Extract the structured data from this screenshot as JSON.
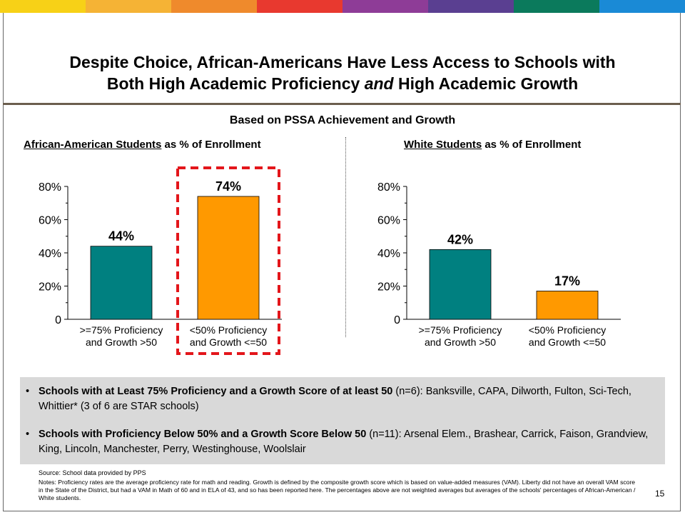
{
  "slide": {
    "stripe_colors": [
      "#f7d117",
      "#f5b335",
      "#ef8a2c",
      "#e8392f",
      "#8e3c97",
      "#5a3f91",
      "#0b7a5c",
      "#1a8ad6"
    ],
    "title_line1": "Despite Choice, African-Americans Have Less Access to Schools with",
    "title_line2_a": "Both High Academic Proficiency ",
    "title_line2_em": "and",
    "title_line2_b": " High Academic Growth",
    "subtitle": "Based on PSSA Achievement and Growth",
    "page_number": "15"
  },
  "chart_data": [
    {
      "type": "bar",
      "title_underlined": "African-American Students",
      "title_rest": " as % of Enrollment",
      "categories": [
        ">=75% Proficiency and Growth >50",
        "<50% Proficiency and Growth <=50"
      ],
      "category_lines": [
        [
          ">=75% Proficiency",
          "and Growth >50"
        ],
        [
          "<50% Proficiency",
          "and Growth <=50"
        ]
      ],
      "values": [
        44,
        74
      ],
      "value_labels": [
        "44%",
        "74%"
      ],
      "colors": [
        "#008080",
        "#ff9900"
      ],
      "ylim": [
        0,
        80
      ],
      "yticks": [
        0,
        20,
        40,
        60,
        80
      ],
      "ytick_labels": [
        "0",
        "20%",
        "40%",
        "60%",
        "80%"
      ],
      "highlight_index": 1,
      "highlight_color": "#e3161b"
    },
    {
      "type": "bar",
      "title_underlined": "White Students",
      "title_rest": " as % of Enrollment",
      "categories": [
        ">=75% Proficiency and Growth >50",
        "<50% Proficiency and Growth <=50"
      ],
      "category_lines": [
        [
          ">=75% Proficiency",
          "and Growth >50"
        ],
        [
          "<50% Proficiency",
          "and Growth <=50"
        ]
      ],
      "values": [
        42,
        17
      ],
      "value_labels": [
        "42%",
        "17%"
      ],
      "colors": [
        "#008080",
        "#ff9900"
      ],
      "ylim": [
        0,
        80
      ],
      "yticks": [
        0,
        20,
        40,
        60,
        80
      ],
      "ytick_labels": [
        "0",
        "20%",
        "40%",
        "60%",
        "80%"
      ],
      "highlight_index": null
    }
  ],
  "bullets": [
    {
      "bold": "Schools with at Least 75% Proficiency and a Growth Score of at least 50",
      "rest": " (n=6): Banksville, CAPA, Dilworth, Fulton, Sci-Tech, Whittier* (3 of 6 are STAR schools)"
    },
    {
      "bold": "Schools with Proficiency Below 50% and a Growth Score Below 50",
      "rest": " (n=11): Arsenal Elem., Brashear, Carrick, Faison, Grandview, King, Lincoln, Manchester, Perry, Westinghouse, Woolslair"
    }
  ],
  "source": "Source: School data provided by PPS",
  "notes": "Notes: Proficiency rates are the average proficiency rate for math and reading. Growth is defined by the composite growth score which is based on value-added measures (VAM). Liberty did not have an overall VAM score in the State of the District, but had a VAM in Math of 60 and in ELA of 43, and so has been reported here. The percentages above are not weighted averages but averages of the schools' percentages of African-American / White students."
}
